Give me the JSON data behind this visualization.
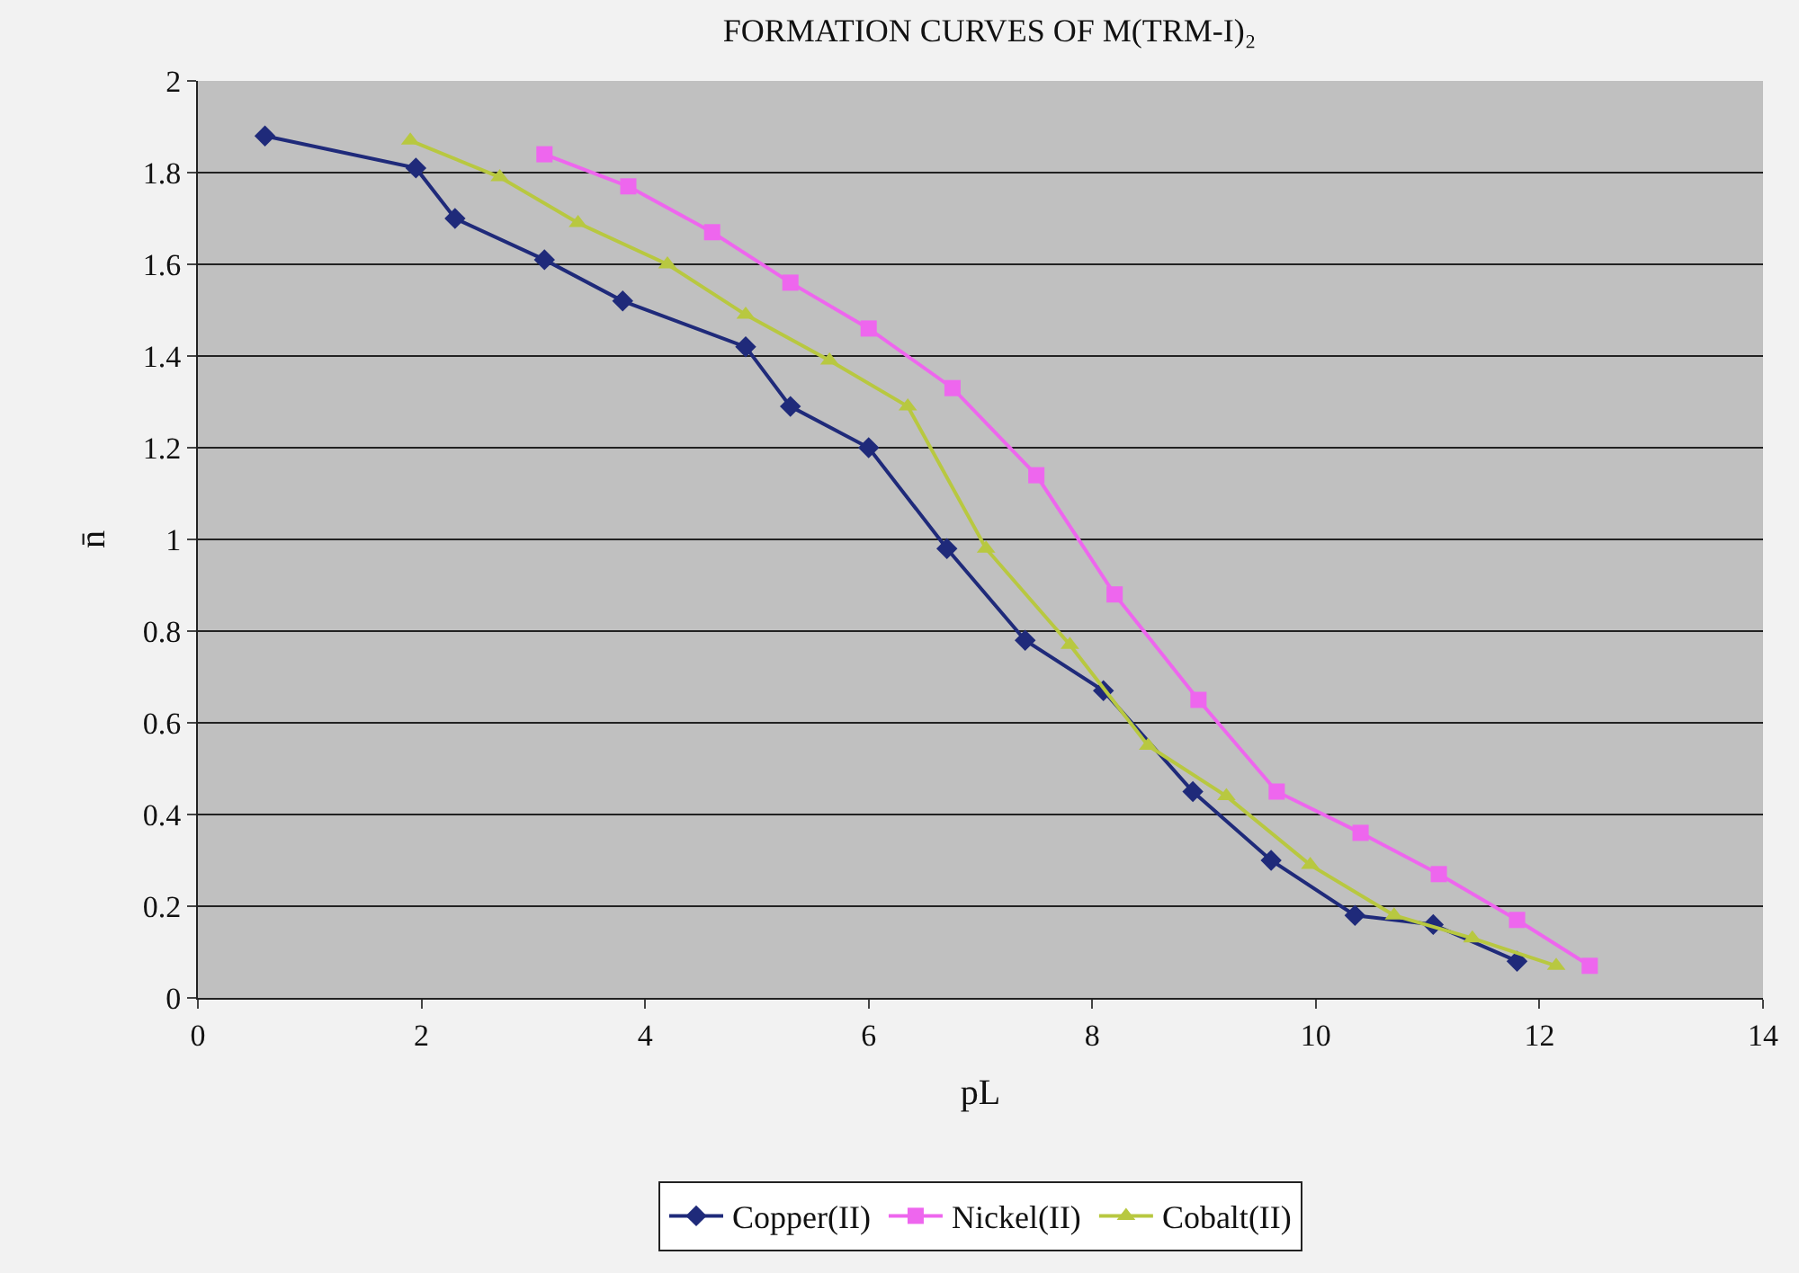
{
  "chart_data": {
    "type": "line",
    "title": "FORMATION CURVES OF M(TRM-I)₂",
    "xlabel": "pL",
    "ylabel": "n̄",
    "xlim": [
      0,
      14
    ],
    "xticks": [
      0,
      2,
      4,
      6,
      8,
      10,
      12,
      14
    ],
    "ylim": [
      0,
      2
    ],
    "yticks": [
      0,
      0.2,
      0.4,
      0.6,
      0.8,
      1,
      1.2,
      1.4,
      1.6,
      1.8,
      2
    ],
    "grid": "y",
    "legend": "bottom",
    "series": [
      {
        "name": "Copper(II)",
        "color": "#1f2a7a",
        "marker": "diamond",
        "x": [
          0.6,
          1.95,
          2.3,
          3.1,
          3.8,
          4.9,
          5.3,
          6.0,
          6.7,
          7.4,
          8.1,
          8.9,
          9.6,
          10.35,
          11.05,
          11.8
        ],
        "values": [
          1.88,
          1.81,
          1.7,
          1.61,
          1.52,
          1.42,
          1.29,
          1.2,
          0.98,
          0.78,
          0.67,
          0.45,
          0.3,
          0.18,
          0.16,
          0.08
        ]
      },
      {
        "name": "Nickel(II)",
        "color": "#ee66ee",
        "marker": "square",
        "x": [
          3.1,
          3.85,
          4.6,
          5.3,
          6.0,
          6.75,
          7.5,
          8.2,
          8.95,
          9.65,
          10.4,
          11.1,
          11.8,
          12.45
        ],
        "values": [
          1.84,
          1.77,
          1.67,
          1.56,
          1.46,
          1.33,
          1.14,
          0.88,
          0.65,
          0.45,
          0.36,
          0.27,
          0.17,
          0.07
        ]
      },
      {
        "name": "Cobalt(II)",
        "color": "#b8c840",
        "marker": "triangle",
        "x": [
          1.9,
          2.7,
          3.4,
          4.2,
          4.9,
          5.65,
          6.35,
          7.05,
          7.8,
          8.5,
          9.2,
          9.95,
          10.7,
          11.4,
          12.15
        ],
        "values": [
          1.87,
          1.79,
          1.69,
          1.6,
          1.49,
          1.39,
          1.29,
          0.98,
          0.77,
          0.55,
          0.44,
          0.29,
          0.18,
          0.13,
          0.07
        ]
      }
    ]
  }
}
